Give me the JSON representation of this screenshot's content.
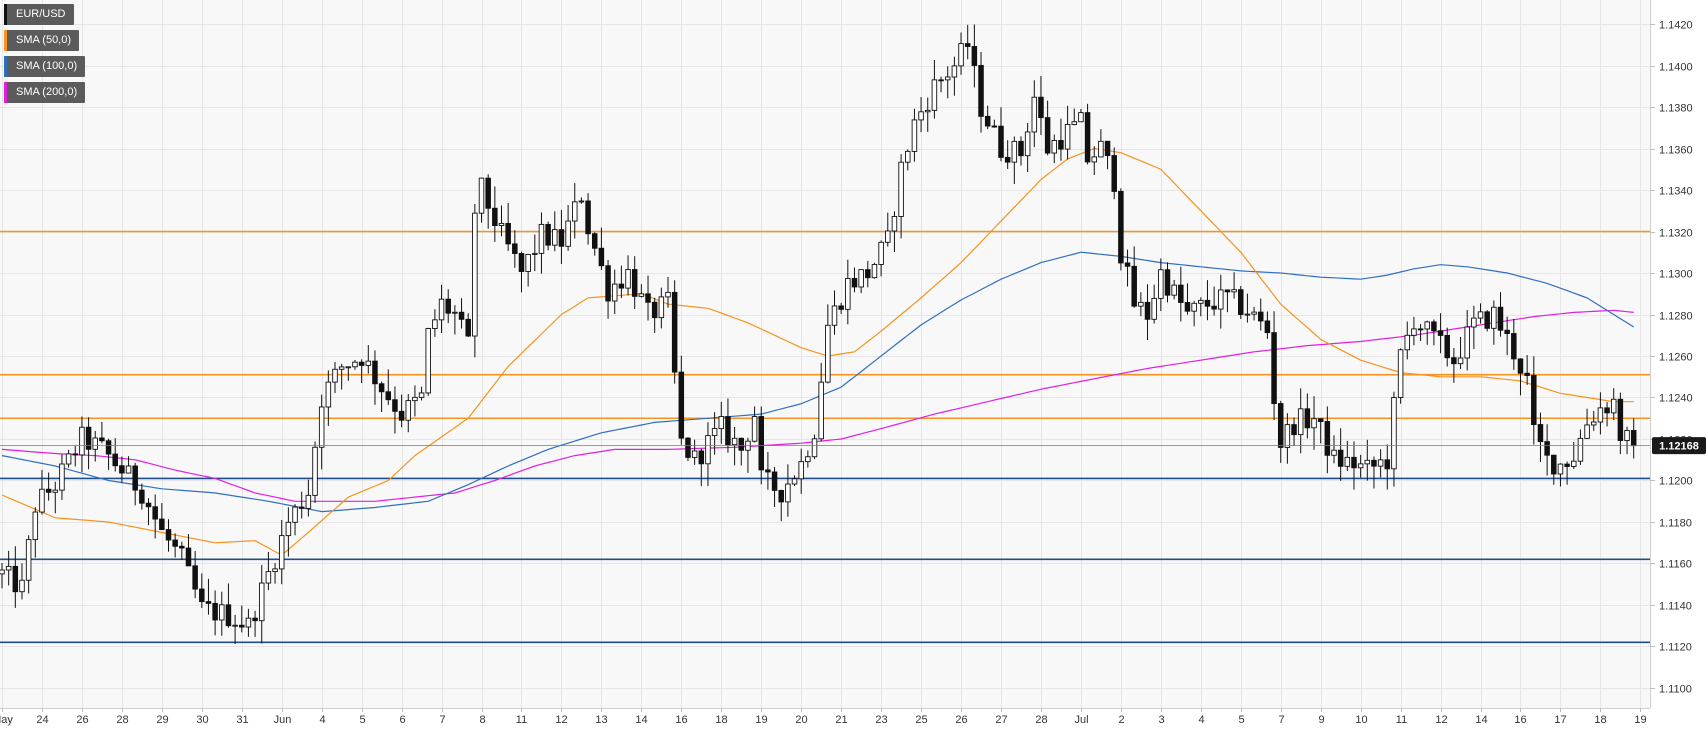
{
  "legend": [
    {
      "label": "EUR/USD",
      "color": "#111111"
    },
    {
      "label": "SMA (50,0)",
      "color": "#f7931e"
    },
    {
      "label": "SMA (100,0)",
      "color": "#2f6fbf"
    },
    {
      "label": "SMA (200,0)",
      "color": "#e020e0"
    }
  ],
  "price_badge": "1.12168",
  "chart_data": {
    "type": "candlestick",
    "symbol": "EUR/USD",
    "ylim": [
      1.109,
      1.1425
    ],
    "y_ticks": [
      "1.1100",
      "1.1120",
      "1.1140",
      "1.1160",
      "1.1180",
      "1.1200",
      "1.1220",
      "1.1240",
      "1.1260",
      "1.1280",
      "1.1300",
      "1.1320",
      "1.1340",
      "1.1360",
      "1.1380",
      "1.1400",
      "1.1420"
    ],
    "x_ticks": [
      {
        "i": 0,
        "label": "May"
      },
      {
        "i": 6,
        "label": "24"
      },
      {
        "i": 12,
        "label": "26"
      },
      {
        "i": 18,
        "label": "28"
      },
      {
        "i": 24,
        "label": "29"
      },
      {
        "i": 30,
        "label": "30"
      },
      {
        "i": 36,
        "label": "31"
      },
      {
        "i": 42,
        "label": "Jun"
      },
      {
        "i": 48,
        "label": "4"
      },
      {
        "i": 54,
        "label": "5"
      },
      {
        "i": 60,
        "label": "6"
      },
      {
        "i": 66,
        "label": "7"
      },
      {
        "i": 72,
        "label": "8"
      },
      {
        "i": 78,
        "label": "11"
      },
      {
        "i": 84,
        "label": "12"
      },
      {
        "i": 90,
        "label": "13"
      },
      {
        "i": 96,
        "label": "14"
      },
      {
        "i": 102,
        "label": "16"
      },
      {
        "i": 108,
        "label": "18"
      },
      {
        "i": 114,
        "label": "19"
      },
      {
        "i": 120,
        "label": "20"
      },
      {
        "i": 126,
        "label": "21"
      },
      {
        "i": 132,
        "label": "23"
      },
      {
        "i": 138,
        "label": "25"
      },
      {
        "i": 144,
        "label": "26"
      },
      {
        "i": 150,
        "label": "27"
      },
      {
        "i": 156,
        "label": "28"
      },
      {
        "i": 162,
        "label": "Jul"
      },
      {
        "i": 168,
        "label": "2"
      },
      {
        "i": 174,
        "label": "3"
      },
      {
        "i": 180,
        "label": "4"
      },
      {
        "i": 186,
        "label": "5"
      },
      {
        "i": 192,
        "label": "7"
      },
      {
        "i": 198,
        "label": "9"
      },
      {
        "i": 204,
        "label": "10"
      },
      {
        "i": 210,
        "label": "11"
      },
      {
        "i": 216,
        "label": "12"
      },
      {
        "i": 222,
        "label": "14"
      },
      {
        "i": 228,
        "label": "16"
      },
      {
        "i": 234,
        "label": "17"
      },
      {
        "i": 240,
        "label": "18"
      },
      {
        "i": 246,
        "label": "19"
      }
    ],
    "horizontal_levels": [
      {
        "value": 1.132,
        "color": "#f7931e"
      },
      {
        "value": 1.1251,
        "color": "#f7931e"
      },
      {
        "value": 1.123,
        "color": "#f7931e"
      },
      {
        "value": 1.1201,
        "color": "#1f4e8c"
      },
      {
        "value": 1.1162,
        "color": "#1f4e8c"
      },
      {
        "value": 1.1122,
        "color": "#1f4e8c"
      }
    ],
    "current_price": 1.12168,
    "anchors": [
      [
        0,
        1.1155
      ],
      [
        3,
        1.1148
      ],
      [
        5,
        1.1188
      ],
      [
        8,
        1.1198
      ],
      [
        12,
        1.122
      ],
      [
        15,
        1.1215
      ],
      [
        18,
        1.1205
      ],
      [
        21,
        1.1195
      ],
      [
        24,
        1.1175
      ],
      [
        27,
        1.1162
      ],
      [
        30,
        1.1138
      ],
      [
        34,
        1.1135
      ],
      [
        37,
        1.113
      ],
      [
        40,
        1.1155
      ],
      [
        43,
        1.118
      ],
      [
        46,
        1.1195
      ],
      [
        48,
        1.124
      ],
      [
        51,
        1.1255
      ],
      [
        54,
        1.126
      ],
      [
        57,
        1.1245
      ],
      [
        60,
        1.1232
      ],
      [
        63,
        1.124
      ],
      [
        64,
        1.127
      ],
      [
        66,
        1.1285
      ],
      [
        68,
        1.128
      ],
      [
        70,
        1.1265
      ],
      [
        71,
        1.133
      ],
      [
        72,
        1.134
      ],
      [
        75,
        1.1318
      ],
      [
        78,
        1.13
      ],
      [
        81,
        1.1318
      ],
      [
        84,
        1.1315
      ],
      [
        87,
        1.1338
      ],
      [
        88,
        1.1322
      ],
      [
        91,
        1.1292
      ],
      [
        94,
        1.13
      ],
      [
        97,
        1.128
      ],
      [
        100,
        1.1285
      ],
      [
        101,
        1.125
      ],
      [
        102,
        1.1218
      ],
      [
        104,
        1.121
      ],
      [
        106,
        1.1218
      ],
      [
        108,
        1.1225
      ],
      [
        111,
        1.1215
      ],
      [
        113,
        1.1232
      ],
      [
        114,
        1.12
      ],
      [
        117,
        1.1195
      ],
      [
        120,
        1.1208
      ],
      [
        122,
        1.1225
      ],
      [
        124,
        1.1275
      ],
      [
        127,
        1.1295
      ],
      [
        130,
        1.13
      ],
      [
        133,
        1.1315
      ],
      [
        135,
        1.135
      ],
      [
        137,
        1.1372
      ],
      [
        140,
        1.139
      ],
      [
        143,
        1.14
      ],
      [
        145,
        1.141
      ],
      [
        147,
        1.138
      ],
      [
        150,
        1.136
      ],
      [
        153,
        1.1358
      ],
      [
        155,
        1.1385
      ],
      [
        157,
        1.136
      ],
      [
        160,
        1.1368
      ],
      [
        162,
        1.1372
      ],
      [
        163,
        1.1355
      ],
      [
        165,
        1.136
      ],
      [
        167,
        1.1345
      ],
      [
        168,
        1.131
      ],
      [
        170,
        1.1285
      ],
      [
        172,
        1.128
      ],
      [
        174,
        1.13
      ],
      [
        176,
        1.129
      ],
      [
        178,
        1.128
      ],
      [
        181,
        1.1285
      ],
      [
        184,
        1.1288
      ],
      [
        187,
        1.1282
      ],
      [
        190,
        1.1272
      ],
      [
        191,
        1.124
      ],
      [
        192,
        1.1218
      ],
      [
        194,
        1.1228
      ],
      [
        197,
        1.123
      ],
      [
        200,
        1.121
      ],
      [
        203,
        1.1208
      ],
      [
        205,
        1.1205
      ],
      [
        208,
        1.121
      ],
      [
        210,
        1.126
      ],
      [
        212,
        1.1278
      ],
      [
        215,
        1.1268
      ],
      [
        218,
        1.1258
      ],
      [
        221,
        1.1275
      ],
      [
        224,
        1.128
      ],
      [
        227,
        1.1262
      ],
      [
        229,
        1.1248
      ],
      [
        230,
        1.1222
      ],
      [
        232,
        1.121
      ],
      [
        234,
        1.1208
      ],
      [
        236,
        1.1212
      ],
      [
        238,
        1.1228
      ],
      [
        240,
        1.1235
      ],
      [
        242,
        1.1238
      ],
      [
        243,
        1.1222
      ],
      [
        245,
        1.1217
      ]
    ],
    "sma_50": [
      [
        0,
        1.1193
      ],
      [
        8,
        1.1182
      ],
      [
        16,
        1.118
      ],
      [
        24,
        1.1175
      ],
      [
        32,
        1.117
      ],
      [
        38,
        1.1171
      ],
      [
        42,
        1.1164
      ],
      [
        46,
        1.1175
      ],
      [
        52,
        1.1192
      ],
      [
        58,
        1.12
      ],
      [
        62,
        1.1212
      ],
      [
        70,
        1.123
      ],
      [
        76,
        1.1255
      ],
      [
        84,
        1.128
      ],
      [
        88,
        1.1288
      ],
      [
        96,
        1.129
      ],
      [
        100,
        1.1285
      ],
      [
        106,
        1.1283
      ],
      [
        112,
        1.1276
      ],
      [
        116,
        1.127
      ],
      [
        120,
        1.1264
      ],
      [
        124,
        1.126
      ],
      [
        128,
        1.1262
      ],
      [
        132,
        1.1272
      ],
      [
        138,
        1.1288
      ],
      [
        144,
        1.1305
      ],
      [
        150,
        1.1325
      ],
      [
        156,
        1.1345
      ],
      [
        160,
        1.1355
      ],
      [
        164,
        1.136
      ],
      [
        168,
        1.1358
      ],
      [
        174,
        1.135
      ],
      [
        180,
        1.133
      ],
      [
        186,
        1.131
      ],
      [
        192,
        1.1285
      ],
      [
        198,
        1.1268
      ],
      [
        204,
        1.1258
      ],
      [
        210,
        1.1252
      ],
      [
        216,
        1.125
      ],
      [
        222,
        1.125
      ],
      [
        228,
        1.1248
      ],
      [
        234,
        1.1242
      ],
      [
        238,
        1.124
      ],
      [
        242,
        1.1238
      ],
      [
        245,
        1.1238
      ]
    ],
    "sma_100": [
      [
        0,
        1.1212
      ],
      [
        8,
        1.1207
      ],
      [
        16,
        1.12
      ],
      [
        24,
        1.1196
      ],
      [
        32,
        1.1194
      ],
      [
        40,
        1.119
      ],
      [
        48,
        1.1185
      ],
      [
        56,
        1.1187
      ],
      [
        64,
        1.119
      ],
      [
        70,
        1.1198
      ],
      [
        76,
        1.1207
      ],
      [
        82,
        1.1215
      ],
      [
        90,
        1.1223
      ],
      [
        98,
        1.1228
      ],
      [
        106,
        1.123
      ],
      [
        114,
        1.1232
      ],
      [
        120,
        1.1237
      ],
      [
        126,
        1.1245
      ],
      [
        132,
        1.126
      ],
      [
        138,
        1.1275
      ],
      [
        144,
        1.1287
      ],
      [
        150,
        1.1297
      ],
      [
        156,
        1.1305
      ],
      [
        162,
        1.131
      ],
      [
        168,
        1.1308
      ],
      [
        174,
        1.1305
      ],
      [
        180,
        1.1303
      ],
      [
        186,
        1.1301
      ],
      [
        192,
        1.13
      ],
      [
        198,
        1.1298
      ],
      [
        204,
        1.1297
      ],
      [
        208,
        1.1299
      ],
      [
        212,
        1.1302
      ],
      [
        216,
        1.1304
      ],
      [
        220,
        1.1303
      ],
      [
        226,
        1.13
      ],
      [
        232,
        1.1295
      ],
      [
        238,
        1.1288
      ],
      [
        242,
        1.128
      ],
      [
        245,
        1.1274
      ]
    ],
    "sma_200": [
      [
        0,
        1.1215
      ],
      [
        8,
        1.1213
      ],
      [
        14,
        1.1212
      ],
      [
        20,
        1.121
      ],
      [
        26,
        1.1205
      ],
      [
        32,
        1.1201
      ],
      [
        38,
        1.1194
      ],
      [
        44,
        1.119
      ],
      [
        50,
        1.119
      ],
      [
        56,
        1.119
      ],
      [
        62,
        1.1192
      ],
      [
        68,
        1.1194
      ],
      [
        74,
        1.12
      ],
      [
        80,
        1.1207
      ],
      [
        86,
        1.1212
      ],
      [
        92,
        1.1215
      ],
      [
        100,
        1.1215
      ],
      [
        110,
        1.1216
      ],
      [
        120,
        1.1218
      ],
      [
        126,
        1.122
      ],
      [
        132,
        1.1225
      ],
      [
        140,
        1.1232
      ],
      [
        148,
        1.1238
      ],
      [
        156,
        1.1244
      ],
      [
        164,
        1.1249
      ],
      [
        172,
        1.1254
      ],
      [
        180,
        1.1258
      ],
      [
        188,
        1.1262
      ],
      [
        196,
        1.1265
      ],
      [
        204,
        1.1267
      ],
      [
        212,
        1.127
      ],
      [
        218,
        1.1273
      ],
      [
        224,
        1.1276
      ],
      [
        230,
        1.1279
      ],
      [
        236,
        1.1281
      ],
      [
        242,
        1.1282
      ],
      [
        245,
        1.1281
      ]
    ]
  }
}
